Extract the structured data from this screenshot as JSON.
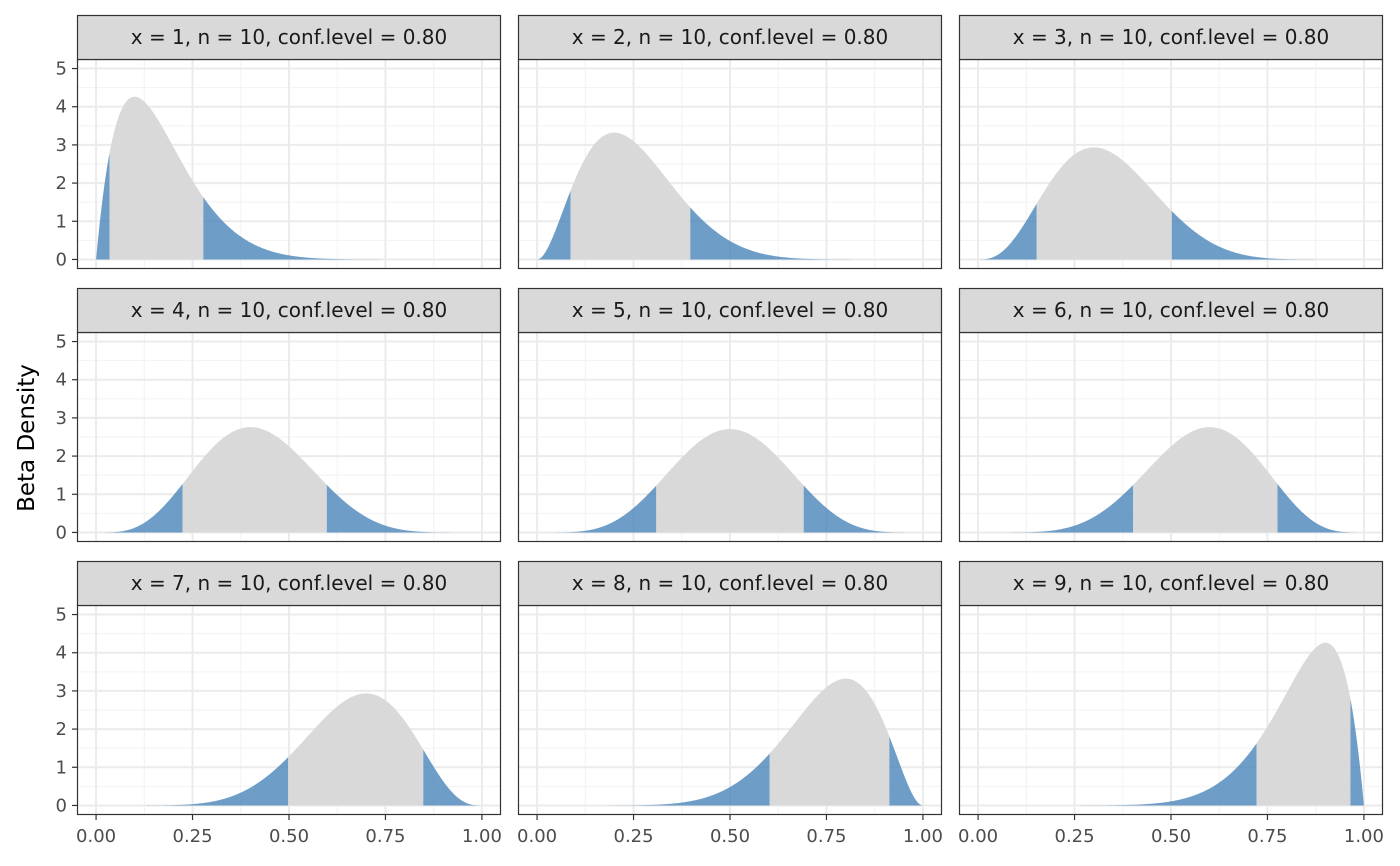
{
  "chart_data": {
    "type": "area",
    "ylabel": "Beta Density",
    "xlabel": "",
    "xlim": [
      0,
      1
    ],
    "ylim": [
      0,
      5
    ],
    "x_ticks": [
      "0.00",
      "0.25",
      "0.50",
      "0.75",
      "1.00"
    ],
    "y_ticks": [
      "0",
      "1",
      "2",
      "3",
      "4",
      "5"
    ],
    "grid": true,
    "colors": {
      "tail": "#4A86BA",
      "central": "#D9D9D9",
      "strip_bg": "#D9D9D9",
      "panel_border": "#333333"
    },
    "distribution": "Beta(x + 1, n - x + 1)",
    "panels": [
      {
        "label": "x = 1, n = 10, conf.level = 0.80",
        "x": 1,
        "n": 10,
        "conf_level": 0.8,
        "interval": [
          0.035,
          0.278
        ]
      },
      {
        "label": "x = 2, n = 10, conf.level = 0.80",
        "x": 2,
        "n": 10,
        "conf_level": 0.8,
        "interval": [
          0.087,
          0.397
        ]
      },
      {
        "label": "x = 3, n = 10, conf.level = 0.80",
        "x": 3,
        "n": 10,
        "conf_level": 0.8,
        "interval": [
          0.152,
          0.502
        ]
      },
      {
        "label": "x = 4, n = 10, conf.level = 0.80",
        "x": 4,
        "n": 10,
        "conf_level": 0.8,
        "interval": [
          0.224,
          0.598
        ]
      },
      {
        "label": "x = 5, n = 10, conf.level = 0.80",
        "x": 5,
        "n": 10,
        "conf_level": 0.8,
        "interval": [
          0.309,
          0.691
        ]
      },
      {
        "label": "x = 6, n = 10, conf.level = 0.80",
        "x": 6,
        "n": 10,
        "conf_level": 0.8,
        "interval": [
          0.402,
          0.776
        ]
      },
      {
        "label": "x = 7, n = 10, conf.level = 0.80",
        "x": 7,
        "n": 10,
        "conf_level": 0.8,
        "interval": [
          0.498,
          0.848
        ]
      },
      {
        "label": "x = 8, n = 10, conf.level = 0.80",
        "x": 8,
        "n": 10,
        "conf_level": 0.8,
        "interval": [
          0.603,
          0.913
        ]
      },
      {
        "label": "x = 9, n = 10, conf.level = 0.80",
        "x": 9,
        "n": 10,
        "conf_level": 0.8,
        "interval": [
          0.722,
          0.965
        ]
      }
    ]
  }
}
